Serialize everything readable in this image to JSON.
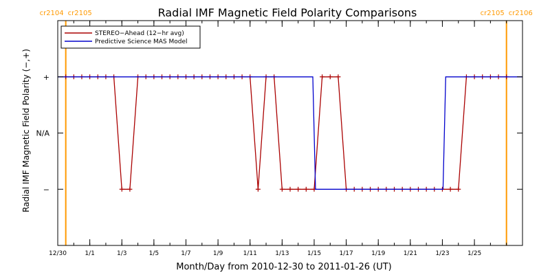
{
  "chart_data": {
    "type": "line",
    "title": "Radial IMF Magnetic Field Polarity Comparisons",
    "xlabel": "Month/Day from 2010-12-30 to 2011-01-26 (UT)",
    "ylabel": "Radial IMF Magnetic Field Polarity (−,+)",
    "x_range": [
      "2010-12-30",
      "2011-01-28"
    ],
    "y_range": [
      -2,
      2
    ],
    "x_ticks": [
      {
        "date": "2010-12-30",
        "label": "12/30"
      },
      {
        "date": "2011-01-01",
        "label": "1/1"
      },
      {
        "date": "2011-01-03",
        "label": "1/3"
      },
      {
        "date": "2011-01-05",
        "label": "1/5"
      },
      {
        "date": "2011-01-07",
        "label": "1/7"
      },
      {
        "date": "2011-01-09",
        "label": "1/9"
      },
      {
        "date": "2011-01-11",
        "label": "1/11"
      },
      {
        "date": "2011-01-13",
        "label": "1/13"
      },
      {
        "date": "2011-01-15",
        "label": "1/15"
      },
      {
        "date": "2011-01-17",
        "label": "1/17"
      },
      {
        "date": "2011-01-19",
        "label": "1/19"
      },
      {
        "date": "2011-01-21",
        "label": "1/21"
      },
      {
        "date": "2011-01-23",
        "label": "1/23"
      },
      {
        "date": "2011-01-25",
        "label": "1/25"
      }
    ],
    "y_ticks": [
      {
        "value": 1,
        "label": "+"
      },
      {
        "value": 0,
        "label": "N/A"
      },
      {
        "value": -1,
        "label": "−"
      }
    ],
    "carrington_lines": [
      {
        "date": "2010-12-30T12:00",
        "left": "cr2104",
        "right": "cr2105",
        "color": "#ff9900"
      },
      {
        "date": "2011-01-27T00:00",
        "left": "cr2105",
        "right": "cr2106",
        "color": "#ff9900"
      }
    ],
    "legend": {
      "position": "top-left"
    },
    "series": [
      {
        "name": "STEREO−Ahead (12−hr avg)",
        "color": "#aa0000",
        "marker": "plus",
        "points": [
          [
            "2010-12-30T12:00",
            1
          ],
          [
            "2010-12-31T00:00",
            1
          ],
          [
            "2010-12-31T12:00",
            1
          ],
          [
            "2011-01-01T00:00",
            1
          ],
          [
            "2011-01-01T12:00",
            1
          ],
          [
            "2011-01-02T00:00",
            1
          ],
          [
            "2011-01-02T12:00",
            1
          ],
          [
            "2011-01-03T00:00",
            -1
          ],
          [
            "2011-01-03T12:00",
            -1
          ],
          [
            "2011-01-04T00:00",
            1
          ],
          [
            "2011-01-04T12:00",
            1
          ],
          [
            "2011-01-05T00:00",
            1
          ],
          [
            "2011-01-05T12:00",
            1
          ],
          [
            "2011-01-06T00:00",
            1
          ],
          [
            "2011-01-06T12:00",
            1
          ],
          [
            "2011-01-07T00:00",
            1
          ],
          [
            "2011-01-07T12:00",
            1
          ],
          [
            "2011-01-08T00:00",
            1
          ],
          [
            "2011-01-08T12:00",
            1
          ],
          [
            "2011-01-09T00:00",
            1
          ],
          [
            "2011-01-09T12:00",
            1
          ],
          [
            "2011-01-10T00:00",
            1
          ],
          [
            "2011-01-10T12:00",
            1
          ],
          [
            "2011-01-11T00:00",
            1
          ],
          [
            "2011-01-11T12:00",
            -1
          ],
          [
            "2011-01-12T00:00",
            1
          ],
          [
            "2011-01-12T12:00",
            1
          ],
          [
            "2011-01-13T00:00",
            -1
          ],
          [
            "2011-01-13T12:00",
            -1
          ],
          [
            "2011-01-14T00:00",
            -1
          ],
          [
            "2011-01-14T12:00",
            -1
          ],
          [
            "2011-01-15T00:00",
            -1
          ],
          [
            "2011-01-15T12:00",
            1
          ],
          [
            "2011-01-16T00:00",
            1
          ],
          [
            "2011-01-16T12:00",
            1
          ],
          [
            "2011-01-17T00:00",
            -1
          ],
          [
            "2011-01-17T12:00",
            -1
          ],
          [
            "2011-01-18T00:00",
            -1
          ],
          [
            "2011-01-18T12:00",
            -1
          ],
          [
            "2011-01-19T00:00",
            -1
          ],
          [
            "2011-01-19T12:00",
            -1
          ],
          [
            "2011-01-20T00:00",
            -1
          ],
          [
            "2011-01-20T12:00",
            -1
          ],
          [
            "2011-01-21T00:00",
            -1
          ],
          [
            "2011-01-21T12:00",
            -1
          ],
          [
            "2011-01-22T00:00",
            -1
          ],
          [
            "2011-01-22T12:00",
            -1
          ],
          [
            "2011-01-23T00:00",
            -1
          ],
          [
            "2011-01-23T12:00",
            -1
          ],
          [
            "2011-01-24T00:00",
            -1
          ],
          [
            "2011-01-24T12:00",
            1
          ],
          [
            "2011-01-25T00:00",
            1
          ],
          [
            "2011-01-25T12:00",
            1
          ],
          [
            "2011-01-26T00:00",
            1
          ],
          [
            "2011-01-26T12:00",
            1
          ],
          [
            "2011-01-27T00:00",
            1
          ]
        ]
      },
      {
        "name": "Predictive Science MAS Model",
        "color": "#0000cc",
        "marker": "none",
        "points": [
          [
            "2010-12-30T00:00",
            1
          ],
          [
            "2011-01-14T22:00",
            1
          ],
          [
            "2011-01-15T02:00",
            -1
          ],
          [
            "2011-01-23T01:00",
            -1
          ],
          [
            "2011-01-23T05:00",
            1
          ],
          [
            "2011-01-28T00:00",
            1
          ]
        ]
      }
    ]
  }
}
